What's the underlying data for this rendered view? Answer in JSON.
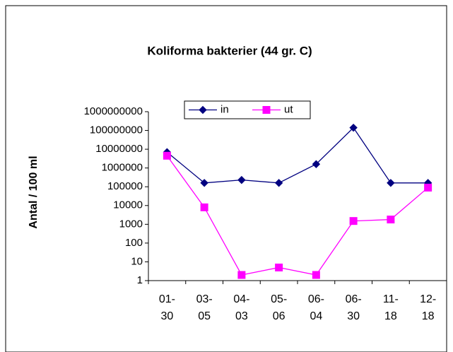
{
  "chart_data": {
    "type": "line",
    "title": "Koliforma bakterier (44 gr. C)",
    "y_label": "Antal / 100 ml",
    "categories": [
      "01-30",
      "03-05",
      "04-03",
      "05-06",
      "06-04",
      "06-30",
      "11-18",
      "12-18"
    ],
    "series": [
      {
        "name": "in",
        "color": "#000080",
        "marker": "diamond",
        "values": [
          7000000,
          160000,
          230000,
          160000,
          1600000,
          140000000,
          160000,
          160000
        ]
      },
      {
        "name": "ut",
        "color": "#ff00ff",
        "marker": "square",
        "values": [
          4500000,
          8000,
          2,
          5,
          2,
          1500,
          1800,
          90000
        ]
      }
    ],
    "log_scale": true,
    "ylim": [
      1,
      1000000000
    ],
    "yticks": [
      1,
      10,
      100,
      1000,
      10000,
      100000,
      1000000,
      10000000,
      100000000,
      1000000000
    ],
    "grid": false,
    "legend": "top"
  }
}
